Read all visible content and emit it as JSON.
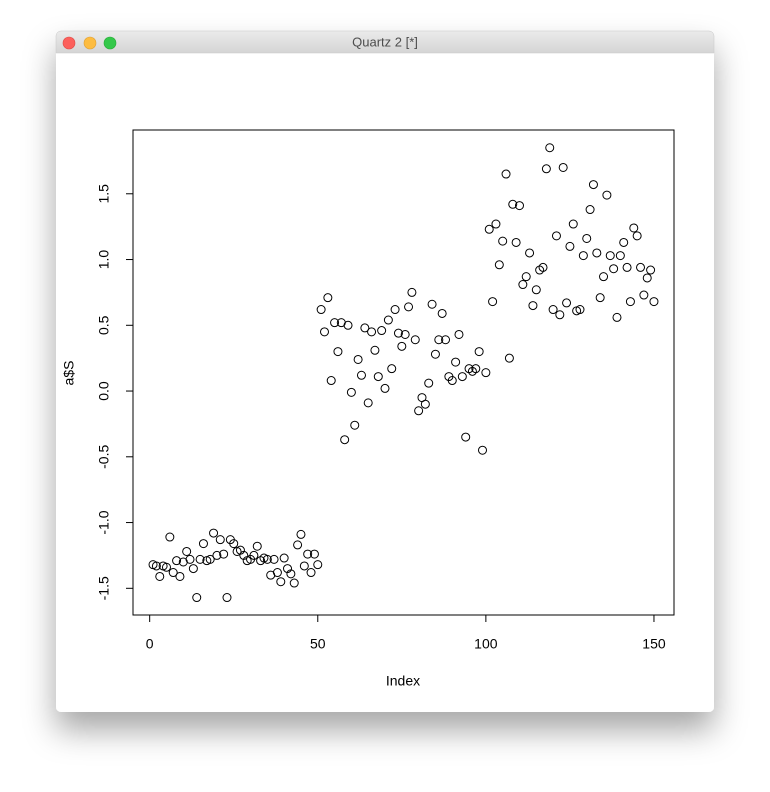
{
  "window": {
    "title": "Quartz 2 [*]"
  },
  "chart_data": {
    "type": "scatter",
    "xlabel": "Index",
    "ylabel": "a$S",
    "color": "#000000",
    "x": [
      1,
      2,
      3,
      4,
      5,
      6,
      7,
      8,
      9,
      10,
      11,
      12,
      13,
      14,
      15,
      16,
      17,
      18,
      19,
      20,
      21,
      22,
      23,
      24,
      25,
      26,
      27,
      28,
      29,
      30,
      31,
      32,
      33,
      34,
      35,
      36,
      37,
      38,
      39,
      40,
      41,
      42,
      43,
      44,
      45,
      46,
      47,
      48,
      49,
      50,
      51,
      52,
      53,
      54,
      55,
      56,
      57,
      58,
      59,
      60,
      61,
      62,
      63,
      64,
      65,
      66,
      67,
      68,
      69,
      70,
      71,
      72,
      73,
      74,
      75,
      76,
      77,
      78,
      79,
      80,
      81,
      82,
      83,
      84,
      85,
      86,
      87,
      88,
      89,
      90,
      91,
      92,
      93,
      94,
      95,
      96,
      97,
      98,
      99,
      100,
      101,
      102,
      103,
      104,
      105,
      106,
      107,
      108,
      109,
      110,
      111,
      112,
      113,
      114,
      115,
      116,
      117,
      118,
      119,
      120,
      121,
      122,
      123,
      124,
      125,
      126,
      127,
      128,
      129,
      130,
      131,
      132,
      133,
      134,
      135,
      136,
      137,
      138,
      139,
      140,
      141,
      142,
      143,
      144,
      145,
      146,
      147,
      148,
      149,
      150
    ],
    "values": [
      -1.32,
      -1.33,
      -1.41,
      -1.33,
      -1.34,
      -1.11,
      -1.38,
      -1.29,
      -1.41,
      -1.3,
      -1.22,
      -1.28,
      -1.35,
      -1.57,
      -1.28,
      -1.16,
      -1.29,
      -1.28,
      -1.08,
      -1.25,
      -1.13,
      -1.24,
      -1.57,
      -1.13,
      -1.16,
      -1.22,
      -1.21,
      -1.25,
      -1.29,
      -1.28,
      -1.25,
      -1.18,
      -1.29,
      -1.27,
      -1.28,
      -1.4,
      -1.28,
      -1.38,
      -1.45,
      -1.27,
      -1.35,
      -1.39,
      -1.46,
      -1.17,
      -1.09,
      -1.33,
      -1.24,
      -1.38,
      -1.24,
      -1.32,
      0.62,
      0.45,
      0.71,
      0.08,
      0.52,
      0.3,
      0.52,
      -0.37,
      0.5,
      -0.01,
      -0.26,
      0.24,
      0.12,
      0.48,
      -0.09,
      0.45,
      0.31,
      0.11,
      0.46,
      0.02,
      0.54,
      0.17,
      0.62,
      0.44,
      0.34,
      0.43,
      0.64,
      0.75,
      0.39,
      -0.15,
      -0.05,
      -0.1,
      0.06,
      0.66,
      0.28,
      0.39,
      0.59,
      0.39,
      0.11,
      0.08,
      0.22,
      0.43,
      0.11,
      -0.35,
      0.17,
      0.15,
      0.17,
      0.3,
      -0.45,
      0.14,
      1.23,
      0.68,
      1.27,
      0.96,
      1.14,
      1.65,
      0.25,
      1.42,
      1.13,
      1.41,
      0.81,
      0.87,
      1.05,
      0.65,
      0.77,
      0.92,
      0.94,
      1.69,
      1.85,
      0.62,
      1.18,
      0.58,
      1.7,
      0.67,
      1.1,
      1.27,
      0.61,
      0.62,
      1.03,
      1.16,
      1.38,
      1.57,
      1.05,
      0.71,
      0.87,
      1.49,
      1.03,
      0.93,
      0.56,
      1.03,
      1.13,
      0.94,
      0.68,
      1.24,
      1.18,
      0.94,
      0.73,
      0.86,
      0.92,
      0.68
    ],
    "xlim": [
      -4.96,
      155.96
    ],
    "ylim": [
      -1.703,
      1.985
    ],
    "xticks": [
      0,
      50,
      100,
      150
    ],
    "yticks": [
      -1.5,
      {
        "value": -1,
        "label": "-1.0"
      },
      -0.5,
      {
        "value": 0,
        "label": "0.0"
      },
      0.5,
      {
        "value": 1,
        "label": "1.0"
      },
      1.5
    ]
  }
}
